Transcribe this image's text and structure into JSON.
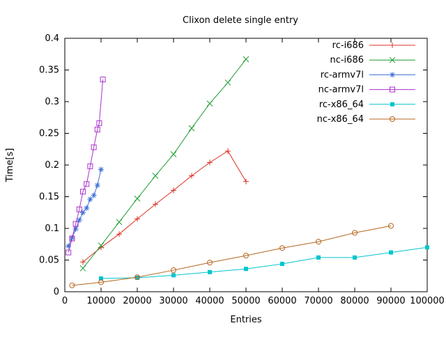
{
  "chart_data": {
    "type": "line",
    "title": "Clixon delete single entry",
    "xlabel": "Entries",
    "ylabel": "Time[s]",
    "xlim": [
      0,
      100000
    ],
    "ylim": [
      0,
      0.4
    ],
    "grid": false,
    "legend_position": "top-right-inside",
    "x_ticks": [
      0,
      10000,
      20000,
      30000,
      40000,
      50000,
      60000,
      70000,
      80000,
      90000,
      100000
    ],
    "x_tick_labels": [
      "0",
      "10000",
      "20000",
      "30000",
      "40000",
      "50000",
      "60000",
      "70000",
      "80000",
      "90000",
      "100000"
    ],
    "y_ticks": [
      0,
      0.05,
      0.1,
      0.15,
      0.2,
      0.25,
      0.3,
      0.35,
      0.4
    ],
    "y_tick_labels": [
      "0",
      "0.05",
      "0.1",
      "0.15",
      "0.2",
      "0.25",
      "0.3",
      "0.35",
      "0.4"
    ],
    "series": [
      {
        "name": "rc-i686",
        "color": "#dc3023",
        "marker": "plus",
        "x": [
          5000,
          10000,
          15000,
          20000,
          25000,
          30000,
          35000,
          40000,
          45000,
          50000
        ],
        "y": [
          0.047,
          0.07,
          0.091,
          0.115,
          0.138,
          0.16,
          0.183,
          0.204,
          0.222,
          0.174
        ]
      },
      {
        "name": "nc-i686",
        "color": "#1e9e33",
        "marker": "cross",
        "x": [
          5000,
          10000,
          15000,
          20000,
          25000,
          30000,
          35000,
          40000,
          45000,
          50000
        ],
        "y": [
          0.037,
          0.073,
          0.11,
          0.147,
          0.183,
          0.217,
          0.258,
          0.297,
          0.33,
          0.367
        ]
      },
      {
        "name": "rc-armv7l",
        "color": "#3b6fd4",
        "marker": "asterisk",
        "x": [
          1000,
          2000,
          3000,
          4000,
          5000,
          6000,
          7000,
          8000,
          9000,
          10000
        ],
        "y": [
          0.072,
          0.085,
          0.099,
          0.113,
          0.125,
          0.132,
          0.146,
          0.152,
          0.168,
          0.193
        ]
      },
      {
        "name": "nc-armv7l",
        "color": "#aa32cc",
        "marker": "square-open",
        "x": [
          1000,
          2000,
          3000,
          4000,
          5000,
          6000,
          7000,
          8000,
          9000,
          9500,
          10500
        ],
        "y": [
          0.062,
          0.084,
          0.107,
          0.13,
          0.158,
          0.17,
          0.198,
          0.228,
          0.256,
          0.266,
          0.335
        ]
      },
      {
        "name": "rc-x86_64",
        "color": "#00c5cd",
        "marker": "square-filled",
        "x": [
          10000,
          20000,
          30000,
          40000,
          50000,
          60000,
          70000,
          80000,
          90000,
          100000
        ],
        "y": [
          0.021,
          0.022,
          0.026,
          0.031,
          0.036,
          0.044,
          0.054,
          0.054,
          0.062,
          0.07
        ]
      },
      {
        "name": "nc-x86_64",
        "color": "#b5651d",
        "marker": "circle-open",
        "x": [
          2000,
          10000,
          20000,
          30000,
          40000,
          50000,
          60000,
          70000,
          80000,
          90000
        ],
        "y": [
          0.01,
          0.015,
          0.023,
          0.034,
          0.046,
          0.057,
          0.069,
          0.079,
          0.093,
          0.104
        ]
      }
    ]
  }
}
